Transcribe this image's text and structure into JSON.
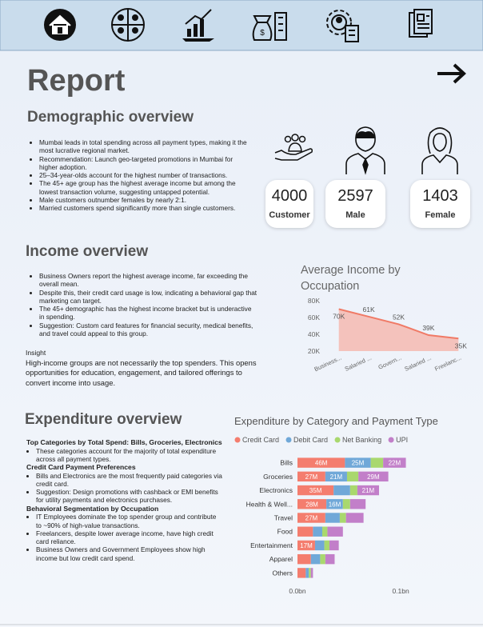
{
  "header": {
    "title": "Report"
  },
  "demographic": {
    "title": "Demographic overview",
    "bullets": [
      "Mumbai leads in total spending across all payment types, making it the most lucrative regional market.",
      "Recommendation: Launch geo-targeted promotions in Mumbai for higher adoption.",
      "25–34-year-olds account for the highest number of transactions.",
      "The 45+ age group has the highest average income but among the lowest transaction volume, suggesting untapped potential.",
      "Male customers outnumber females by nearly 2:1.",
      "Married customers spend significantly more than single customers."
    ]
  },
  "cards": [
    {
      "value": 4000,
      "label": "Customer"
    },
    {
      "value": 2597,
      "label": "Male"
    },
    {
      "value": 1403,
      "label": "Female"
    }
  ],
  "income": {
    "title": "Income overview",
    "bullets": [
      "Business Owners report the highest average income, far exceeding the overall mean.",
      "Despite this, their credit card usage is low, indicating a behavioral gap that marketing can target.",
      "The 45+ demographic has the highest income bracket but is underactive in spending.",
      "Suggestion: Custom card features for financial security, medical benefits, and travel could appeal to this group."
    ],
    "insight_label": "Insight",
    "insight": "High-income groups are not necessarily the top spenders. This opens opportunities for education, engagement, and tailored offerings to convert income into usage."
  },
  "expenditure": {
    "title": "Expenditure overview",
    "blocks": [
      {
        "heading": "Top Categories by Total Spend: Bills, Groceries, Electronics",
        "bullets": [
          "These categories account for the majority of total expenditure across all payment types."
        ]
      },
      {
        "heading": "Credit Card Payment Preferences",
        "bullets": [
          "Bills and Electronics are the most frequently paid categories via credit card.",
          "Suggestion: Design promotions with cashback or EMI benefits for utility payments and electronics purchases."
        ]
      },
      {
        "heading": "Behavioral Segmentation by Occupation",
        "bullets": [
          "IT Employees dominate the top spender group and contribute to ~90% of high-value transactions.",
          "Freelancers, despite lower average income, have high credit card reliance.",
          "Business Owners and Government Employees show high income but low credit card spend."
        ]
      }
    ]
  },
  "chart_data": [
    {
      "type": "line",
      "title": "Average Income by Occupation",
      "categories": [
        "Business...",
        "Salaried ...",
        "Govern...",
        "Salaried ...",
        "Freelanc..."
      ],
      "values": [
        70000,
        61000,
        52000,
        39000,
        35000
      ],
      "value_labels": [
        "70K",
        "61K",
        "52K",
        "39K",
        "35K"
      ],
      "color": "#f07a66",
      "area_color": "#f5b9b0",
      "ylim": [
        20000,
        80000
      ],
      "yticks": [
        {
          "value": 20000,
          "label": "20K"
        },
        {
          "value": 40000,
          "label": "40K"
        },
        {
          "value": 60000,
          "label": "60K"
        },
        {
          "value": 80000,
          "label": "80K"
        }
      ]
    },
    {
      "type": "bar",
      "orientation": "horizontal",
      "stacked": true,
      "legend": "top",
      "title": "Expenditure by Category and Payment Type",
      "categories": [
        "Bills",
        "Groceries",
        "Electronics",
        "Health & Well...",
        "Travel",
        "Food",
        "Entertainment",
        "Apparel",
        "Others"
      ],
      "series": [
        {
          "name": "Credit Card",
          "color": "#f47d6e",
          "values": [
            46000000,
            27000000,
            35000000,
            28000000,
            27000000,
            15000000,
            17000000,
            13000000,
            8000000
          ],
          "value_labels": [
            "46M",
            "27M",
            "35M",
            "28M",
            "27M",
            null,
            "17M",
            null,
            null
          ]
        },
        {
          "name": "Debit Card",
          "color": "#70a8d8",
          "values": [
            25000000,
            21000000,
            16000000,
            16000000,
            14000000,
            9000000,
            9000000,
            9000000,
            3000000
          ],
          "value_labels": [
            "25M",
            "21M",
            null,
            "16M",
            null,
            null,
            null,
            null,
            null
          ]
        },
        {
          "name": "Net Banking",
          "color": "#a9d86e",
          "values": [
            12000000,
            11000000,
            7000000,
            7000000,
            6000000,
            5000000,
            5000000,
            5000000,
            2000000
          ]
        },
        {
          "name": "UPI",
          "color": "#c27fc9",
          "values": [
            22000000,
            29000000,
            21000000,
            15000000,
            17000000,
            15000000,
            9000000,
            9000000,
            2000000
          ],
          "value_labels": [
            "22M",
            "29M",
            "21M",
            null,
            null,
            null,
            null,
            null,
            null
          ]
        }
      ],
      "xlim": [
        0,
        110000000
      ],
      "xticks": [
        {
          "value": 0,
          "label": "0.0bn"
        },
        {
          "value": 100000000,
          "label": "0.1bn"
        }
      ]
    }
  ]
}
